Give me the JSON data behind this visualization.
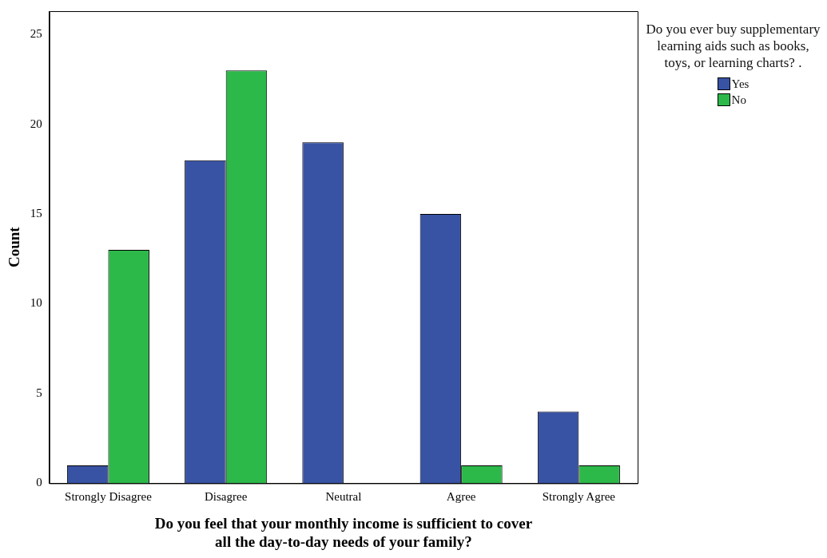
{
  "chart_data": {
    "type": "bar",
    "xlabel": "Do you feel that your monthly income is sufficient to cover all the day-to-day needs of your family?",
    "ylabel": "Count",
    "legend_title": "Do you ever buy supplementary learning aids such as books, toys, or learning charts?   .",
    "legend": "top right",
    "categories": [
      "Strongly Disagree",
      "Disagree",
      "Neutral",
      "Agree",
      "Strongly Agree"
    ],
    "series": [
      {
        "name": "Yes",
        "color": "#3953a4",
        "values": [
          1,
          18,
          19,
          15,
          4
        ]
      },
      {
        "name": "No",
        "color": "#2db84a",
        "values": [
          13,
          23,
          null,
          1,
          1
        ]
      }
    ],
    "ylim": [
      0,
      26.3
    ],
    "yticks": [
      0,
      5,
      10,
      15,
      20,
      25
    ],
    "grid": false
  }
}
